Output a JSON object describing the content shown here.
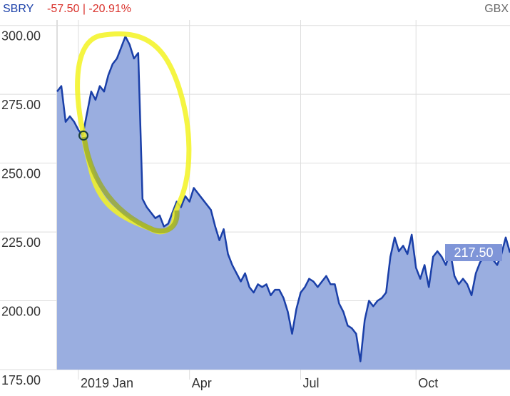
{
  "header": {
    "symbol": "SBRY",
    "change": "-57.50 | -20.91%",
    "currency": "GBX"
  },
  "chart_data": {
    "type": "area",
    "categories": [
      null,
      null,
      null,
      null,
      null,
      "2019 Jan",
      null,
      null,
      null,
      null,
      null,
      null,
      null,
      null,
      null,
      null,
      null,
      null,
      null,
      null,
      null,
      null,
      null,
      null,
      null,
      null,
      null,
      null,
      null,
      null,
      null,
      "Apr",
      null,
      null,
      null,
      null,
      null,
      null,
      null,
      null,
      null,
      null,
      null,
      null,
      null,
      null,
      null,
      null,
      null,
      null,
      null,
      null,
      null,
      null,
      null,
      null,
      null,
      "Jul",
      null,
      null,
      null,
      null,
      null,
      null,
      null,
      null,
      null,
      null,
      null,
      null,
      null,
      null,
      null,
      null,
      null,
      null,
      null,
      null,
      null,
      null,
      null,
      null,
      null,
      null,
      "Oct",
      null,
      null,
      null,
      null,
      null,
      null,
      null,
      null,
      null,
      null,
      null,
      null,
      null,
      null,
      null,
      null,
      null,
      null,
      null,
      null,
      null,
      null
    ],
    "series": [
      {
        "name": "SBRY",
        "color": "#1a3fa8",
        "fill": "#9aaee0",
        "values": [
          276,
          278,
          265,
          267,
          265,
          262,
          260,
          268,
          276,
          273,
          278,
          276,
          282,
          286,
          288,
          292,
          296,
          293,
          288,
          290,
          237,
          234,
          232,
          230,
          231,
          227,
          228,
          232,
          236,
          234,
          238,
          236,
          241,
          239,
          237,
          235,
          233,
          227,
          222,
          226,
          217,
          213,
          210,
          207,
          210,
          205,
          203,
          206,
          205,
          206,
          202,
          204,
          204,
          201,
          196,
          188,
          197,
          203,
          205,
          208,
          207,
          205,
          207,
          209,
          206,
          206,
          199,
          196,
          191,
          190,
          188,
          178,
          193,
          200,
          198,
          200,
          201,
          203,
          216,
          223,
          218,
          220,
          217,
          224,
          212,
          208,
          213,
          205,
          216,
          218,
          216,
          213,
          218,
          209,
          206,
          208,
          206,
          202,
          210,
          214,
          216,
          220,
          215,
          213,
          217,
          223,
          217.5
        ]
      }
    ],
    "last_price": {
      "value": 217.5,
      "label": "217.50"
    },
    "ylim": [
      175,
      302
    ],
    "yticks": [
      {
        "value": 175,
        "label": "175.00"
      },
      {
        "value": 200,
        "label": "200.00"
      },
      {
        "value": 225,
        "label": "225.00"
      },
      {
        "value": 250,
        "label": "250.00"
      },
      {
        "value": 275,
        "label": "275.00"
      },
      {
        "value": 300,
        "label": "300.00"
      }
    ],
    "grid": true
  }
}
